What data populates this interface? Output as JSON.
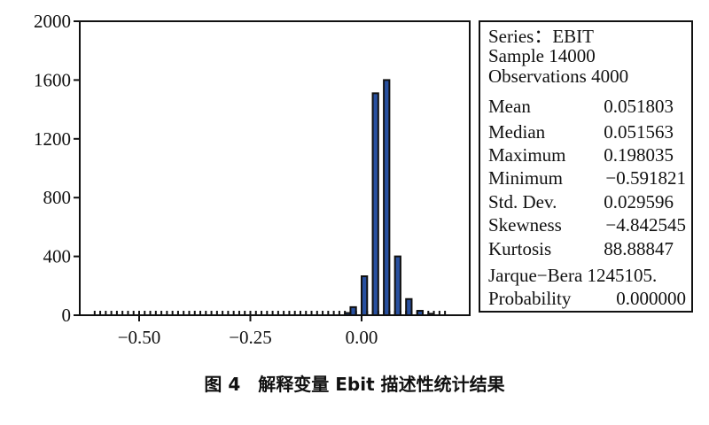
{
  "caption": "图 4　解释变量 Ebit 描述性统计结果",
  "colors": {
    "bar_fill": "#2850a0",
    "bar_stroke": "#111111",
    "axis": "#111111"
  },
  "chart_data": {
    "type": "bar",
    "title": "",
    "xlabel": "",
    "ylabel": "",
    "xlim": [
      -0.62,
      0.2
    ],
    "ylim": [
      0,
      2000
    ],
    "grid": false,
    "x_ticks": [
      -0.5,
      -0.25,
      0.0
    ],
    "x_tick_labels": [
      "−0.50",
      "−0.25",
      "0.00"
    ],
    "y_ticks": [
      0,
      400,
      800,
      1200,
      1600,
      2000
    ],
    "y_tick_labels": [
      "0",
      "400",
      "800",
      "1200",
      "1600",
      "2000"
    ],
    "bin_width": 0.0125,
    "bins": [
      {
        "start": -0.0375,
        "count": 15
      },
      {
        "start": -0.025,
        "count": 55
      },
      {
        "start": 0.0,
        "count": 265
      },
      {
        "start": 0.025,
        "count": 1510
      },
      {
        "start": 0.05,
        "count": 1600
      },
      {
        "start": 0.075,
        "count": 400
      },
      {
        "start": 0.1,
        "count": 110
      },
      {
        "start": 0.125,
        "count": 30
      },
      {
        "start": 0.15,
        "count": 10
      }
    ]
  },
  "stats": {
    "series": "Series：EBIT",
    "sample": "Sample 14000",
    "observations": "Observations 4000",
    "rows": [
      {
        "label": "Mean",
        "value": "0.051803"
      },
      {
        "label": "Median",
        "value": "0.051563"
      },
      {
        "label": "Maximum",
        "value": "0.198035"
      },
      {
        "label": "Minimum",
        "value": "−0.591821"
      },
      {
        "label": "Std. Dev.",
        "value": "0.029596"
      },
      {
        "label": "Skewness",
        "value": "−4.842545"
      },
      {
        "label": "Kurtosis",
        "value": "88.88847"
      }
    ],
    "jarque_bera": "Jarque−Bera 1245105.",
    "probability_label": "Probability",
    "probability_value": "0.000000"
  }
}
